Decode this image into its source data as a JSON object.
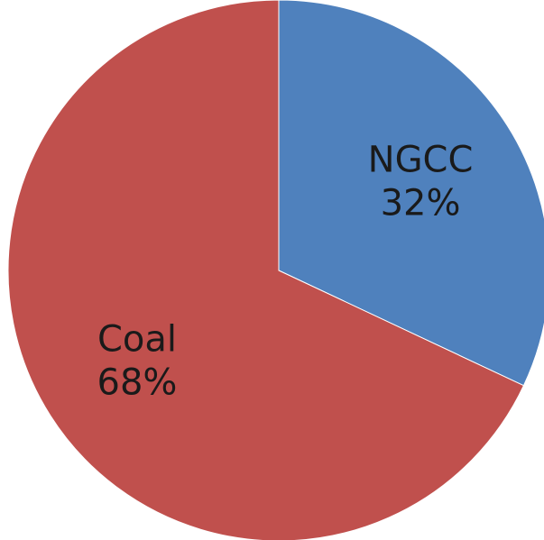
{
  "chart_data": {
    "type": "pie",
    "slices": [
      {
        "label": "NGCC",
        "percent_label": "32%",
        "value": 32,
        "color": "#4f81bd"
      },
      {
        "label": "Coal",
        "percent_label": "68%",
        "value": 68,
        "color": "#c0504d"
      }
    ],
    "title": "",
    "legend": "none",
    "start_angle_deg": 0,
    "direction": "clockwise"
  }
}
